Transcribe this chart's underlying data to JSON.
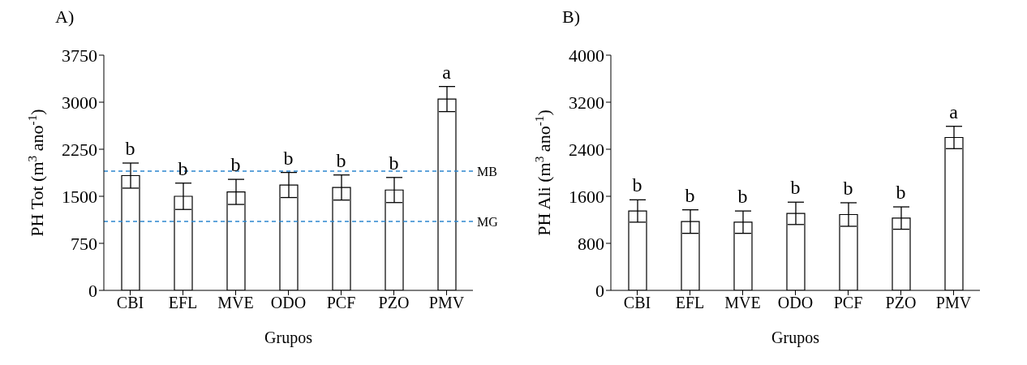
{
  "chart_data": [
    {
      "type": "bar",
      "title": "A)",
      "xlabel": "Grupos",
      "ylabel": "PH Tot (m$^{3}$ ano$^{-1}$)",
      "categories": [
        "CBI",
        "EFL",
        "MVE",
        "ODO",
        "PCF",
        "PZO",
        "PMV"
      ],
      "values": [
        1830,
        1500,
        1570,
        1680,
        1640,
        1600,
        3050
      ],
      "errors": [
        200,
        210,
        200,
        200,
        200,
        200,
        200
      ],
      "color": "#ffffff",
      "ylim": [
        0,
        3750
      ],
      "yticks": [
        0,
        750,
        1500,
        2250,
        3000,
        3750
      ],
      "ref_lines": [
        {
          "axis": "y",
          "value": 1900,
          "label": "MB",
          "color": "#2e86d0",
          "line_style": "dashed"
        },
        {
          "axis": "y",
          "value": 1100,
          "label": "MG",
          "color": "#2e86d0",
          "line_style": "dashed"
        }
      ],
      "annotations": [
        "b",
        "b",
        "b",
        "b",
        "b",
        "b",
        "a"
      ],
      "grid": false,
      "legend": false
    },
    {
      "type": "bar",
      "title": "B)",
      "xlabel": "Grupos",
      "ylabel": "PH Ali (m$^{3}$ ano$^{-1}$)",
      "categories": [
        "CBI",
        "EFL",
        "MVE",
        "ODO",
        "PCF",
        "PZO",
        "PMV"
      ],
      "values": [
        1350,
        1170,
        1160,
        1310,
        1290,
        1230,
        2600
      ],
      "errors": [
        190,
        200,
        190,
        190,
        200,
        190,
        190
      ],
      "color": "#ffffff",
      "ylim": [
        0,
        4000
      ],
      "yticks": [
        0,
        800,
        1600,
        2400,
        3200,
        4000
      ],
      "annotations": [
        "b",
        "b",
        "b",
        "b",
        "b",
        "b",
        "a"
      ],
      "grid": false,
      "legend": false
    }
  ]
}
